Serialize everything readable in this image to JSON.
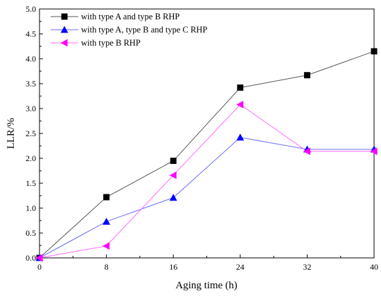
{
  "chart_data": {
    "type": "line",
    "title": "",
    "xlabel": "Aging time (h)",
    "ylabel": "LLR/%",
    "xlim": [
      0,
      40
    ],
    "ylim": [
      0,
      5.0
    ],
    "x_ticks": [
      0,
      8,
      16,
      24,
      32,
      40
    ],
    "x_tick_labels": [
      "0",
      "8",
      "16",
      "24",
      "32",
      "40"
    ],
    "y_ticks": [
      0,
      0.5,
      1.0,
      1.5,
      2.0,
      2.5,
      3.0,
      3.5,
      4.0,
      4.5,
      5.0
    ],
    "y_tick_labels": [
      "0.0",
      "0.5",
      "1.0",
      "1.5",
      "2.0",
      "2.5",
      "3.0",
      "3.5",
      "4.0",
      "4.5",
      "5.0"
    ],
    "grid": false,
    "legend_position": "top-left",
    "x": [
      0,
      8,
      16,
      24,
      32,
      40
    ],
    "series": [
      {
        "name": "with type A and type B RHP",
        "values": [
          0,
          1.22,
          1.95,
          3.42,
          3.67,
          4.15
        ],
        "color": "#000000",
        "line_color": "#555555",
        "marker": "square"
      },
      {
        "name": "with type A, type B and type C RHP",
        "values": [
          0,
          0.73,
          1.21,
          2.42,
          2.18,
          2.18
        ],
        "color": "#0000ff",
        "line_color": "#6b6bff",
        "marker": "triangle-up"
      },
      {
        "name": "with type B RHP",
        "values": [
          0,
          0.24,
          1.66,
          3.08,
          2.14,
          2.14
        ],
        "color": "#ff00ff",
        "line_color": "#ff66ff",
        "marker": "triangle-left"
      }
    ]
  }
}
